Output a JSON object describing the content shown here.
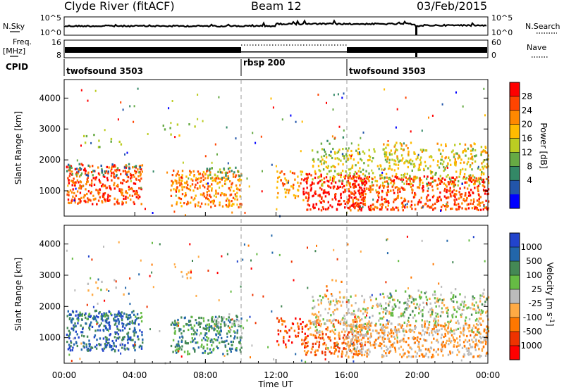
{
  "header": {
    "station": "Clyde River (fitACF)",
    "beam": "Beam 12",
    "date": "03/Feb/2015"
  },
  "sky_panel": {
    "left_label": "N.Sky",
    "right_label": "N.Search",
    "left_ticks": [
      "10^5",
      "10^0"
    ],
    "right_ticks": [
      "10^5",
      "10^0"
    ]
  },
  "freq_panel": {
    "left_label_top": "Freq.",
    "left_label_unit": "[MHz]",
    "right_label": "Nave",
    "left_ticks": [
      "16",
      "8"
    ],
    "right_ticks": [
      "60",
      "0"
    ]
  },
  "cpid_panel": {
    "label": "CPID",
    "segments": [
      {
        "name": "twofsound 3503",
        "start_hour": 0
      },
      {
        "name": "rbsp 200",
        "start_hour": 10
      },
      {
        "name": "twofsound 3503",
        "start_hour": 16
      }
    ]
  },
  "x_axis": {
    "label": "Time UT",
    "tick_labels": [
      "00:00",
      "04:00",
      "08:00",
      "12:00",
      "16:00",
      "20:00",
      "00:00"
    ]
  },
  "power_colorbar": {
    "label": "Power [dB]",
    "tick_labels": [
      "28",
      "24",
      "20",
      "16",
      "12",
      "8",
      "4"
    ],
    "colors": [
      "#ff0000",
      "#ff4400",
      "#ff8800",
      "#ffbb00",
      "#bbcc22",
      "#66aa44",
      "#338866",
      "#2255aa",
      "#0000ff"
    ]
  },
  "velocity_colorbar": {
    "label": "Velocity [m s^-1]",
    "tick_labels": [
      "1000",
      "500",
      "100",
      "25",
      "-25",
      "-100",
      "-500",
      "-1000"
    ],
    "colors": [
      "#2244cc",
      "#2266aa",
      "#448855",
      "#66bb44",
      "#bbbbbb",
      "#ffaa44",
      "#ff7700",
      "#ee3300",
      "#ff0000"
    ]
  },
  "chart_data": [
    {
      "type": "heatmap",
      "title": "",
      "xlabel": "",
      "ylabel": "Slant Range [km]",
      "xlim": [
        0,
        24
      ],
      "ylim": [
        180,
        4600
      ],
      "ytick_labels": [
        "1000",
        "2000",
        "3000",
        "4000"
      ],
      "quantity": "Power [dB]",
      "clim": [
        0,
        32
      ]
    },
    {
      "type": "heatmap",
      "title": "",
      "xlabel": "Time UT",
      "ylabel": "Slant Range [km]",
      "xlim": [
        0,
        24
      ],
      "ylim": [
        180,
        4600
      ],
      "ytick_labels": [
        "1000",
        "2000",
        "3000",
        "4000"
      ],
      "quantity": "Velocity [m s^-1]",
      "clim": [
        -1000,
        1000
      ]
    }
  ]
}
